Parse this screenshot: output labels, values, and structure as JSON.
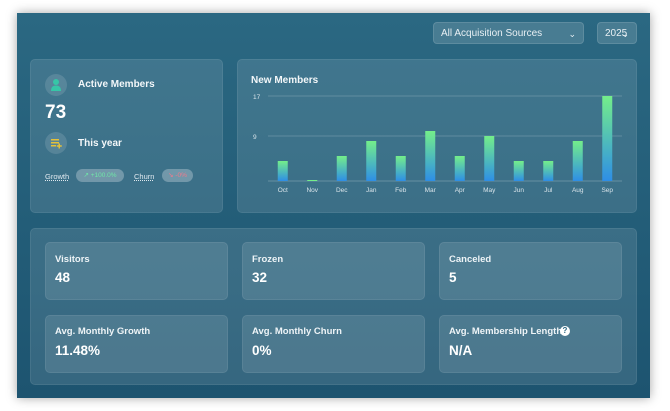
{
  "filters": {
    "source": "All Acquisition Sources",
    "year": "2025"
  },
  "active_members": {
    "title": "Active Members",
    "count": "73",
    "period": "This year",
    "growth_label": "Growth",
    "growth_value": "↗ +100.0%",
    "churn_label": "Churn",
    "churn_value": "↘ -0%"
  },
  "chart_data": {
    "type": "bar",
    "title": "New Members",
    "categories": [
      "Oct",
      "Nov",
      "Dec",
      "Jan",
      "Feb",
      "Mar",
      "Apr",
      "May",
      "Jun",
      "Jul",
      "Aug",
      "Sep"
    ],
    "values": [
      4,
      0,
      5,
      8,
      5,
      10,
      5,
      9,
      4,
      4,
      8,
      17
    ],
    "yticks": [
      9,
      17
    ],
    "ylim": [
      0,
      17
    ],
    "grid": true,
    "bar_gradient": [
      "#74ee8a",
      "#2e8ee6"
    ]
  },
  "stats": [
    {
      "title": "Visitors",
      "value": "48"
    },
    {
      "title": "Frozen",
      "value": "32"
    },
    {
      "title": "Canceled",
      "value": "5"
    },
    {
      "title": "Avg. Monthly Growth",
      "value": "11.48%"
    },
    {
      "title": "Avg. Monthly Churn",
      "value": "0%"
    },
    {
      "title": "Avg. Membership Length",
      "value": "N/A"
    }
  ]
}
